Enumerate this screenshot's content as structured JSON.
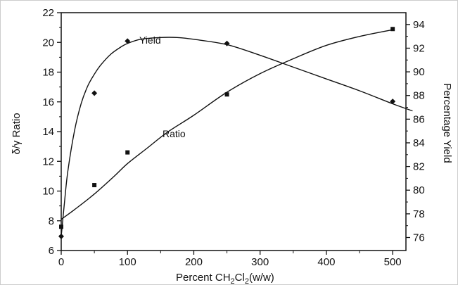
{
  "chart_data": {
    "type": "scatter",
    "xlabel": "Percent CH",
    "xlabel_sub1": "2",
    "xlabel_mid": "Cl",
    "xlabel_sub2": "2",
    "xlabel_suffix": "(w/w)",
    "ylabel_left": "δ/γ Ratio",
    "ylabel_right": "Percentage Yield",
    "xlim": [
      0,
      520
    ],
    "ylim_left": [
      6,
      22
    ],
    "ylim_right": [
      74.9,
      95
    ],
    "x_ticks": [
      0,
      100,
      200,
      300,
      400,
      500
    ],
    "y_left_ticks": [
      6,
      8,
      10,
      12,
      14,
      16,
      18,
      20,
      22
    ],
    "y_right_ticks": [
      76,
      78,
      80,
      82,
      84,
      86,
      88,
      90,
      92,
      94
    ],
    "grid": false,
    "series": [
      {
        "name": "Ratio",
        "axis": "left",
        "marker": "square",
        "points": [
          {
            "x": 0,
            "y": 7.6
          },
          {
            "x": 50,
            "y": 10.4
          },
          {
            "x": 100,
            "y": 12.6
          },
          {
            "x": 250,
            "y": 16.5
          },
          {
            "x": 500,
            "y": 20.9
          }
        ],
        "curve": [
          [
            0,
            8.1
          ],
          [
            20,
            8.75
          ],
          [
            50,
            9.8
          ],
          [
            80,
            11.0
          ],
          [
            100,
            11.85
          ],
          [
            130,
            12.9
          ],
          [
            160,
            13.95
          ],
          [
            200,
            15.1
          ],
          [
            250,
            16.65
          ],
          [
            300,
            17.9
          ],
          [
            350,
            18.9
          ],
          [
            400,
            19.8
          ],
          [
            450,
            20.4
          ],
          [
            500,
            20.85
          ]
        ]
      },
      {
        "name": "Yield",
        "axis": "right",
        "marker": "diamond",
        "points": [
          {
            "x": 0,
            "y": 76.1
          },
          {
            "x": 50,
            "y": 88.2
          },
          {
            "x": 100,
            "y": 92.6
          },
          {
            "x": 250,
            "y": 92.4
          },
          {
            "x": 500,
            "y": 87.5
          }
        ],
        "curve": [
          [
            0,
            76.1
          ],
          [
            5,
            79.0
          ],
          [
            10,
            81.6
          ],
          [
            20,
            85.0
          ],
          [
            30,
            87.3
          ],
          [
            40,
            88.8
          ],
          [
            50,
            89.8
          ],
          [
            60,
            90.6
          ],
          [
            75,
            91.5
          ],
          [
            90,
            92.1
          ],
          [
            100,
            92.4
          ],
          [
            120,
            92.75
          ],
          [
            150,
            92.9
          ],
          [
            175,
            92.9
          ],
          [
            200,
            92.75
          ],
          [
            250,
            92.3
          ],
          [
            300,
            91.4
          ],
          [
            350,
            90.4
          ],
          [
            400,
            89.4
          ],
          [
            450,
            88.4
          ],
          [
            500,
            87.3
          ],
          [
            530,
            86.7
          ]
        ]
      }
    ]
  }
}
